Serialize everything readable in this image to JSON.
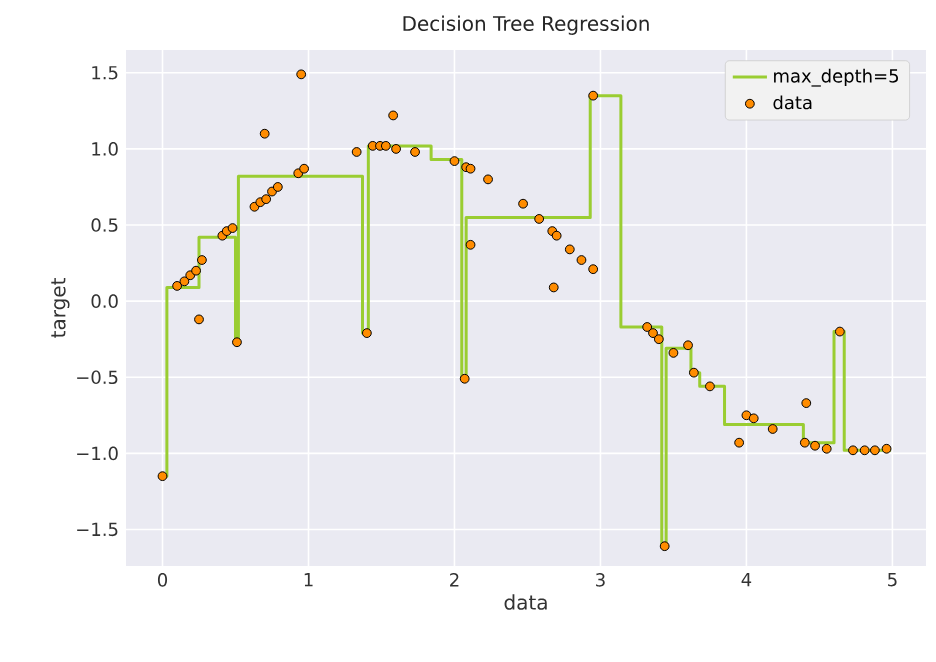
{
  "chart_data": {
    "type": "scatter",
    "title": "Decision Tree Regression",
    "xlabel": "data",
    "ylabel": "target",
    "xlim": [
      -0.25,
      5.23
    ],
    "ylim": [
      -1.74,
      1.65
    ],
    "xticks": [
      0,
      1,
      2,
      3,
      4,
      5
    ],
    "yticks": [
      {
        "value": -1.5,
        "label": "−1.5"
      },
      {
        "value": -1.0,
        "label": "−1.0"
      },
      {
        "value": -0.5,
        "label": "−0.5"
      },
      {
        "value": 0.0,
        "label": "0.0"
      },
      {
        "value": 0.5,
        "label": "0.5"
      },
      {
        "value": 1.0,
        "label": "1.0"
      },
      {
        "value": 1.5,
        "label": "1.5"
      }
    ],
    "grid": true,
    "legend": "top right",
    "series": [
      {
        "name": "max_depth=5",
        "type": "step",
        "color": "#9acd32",
        "marker": "none",
        "x": [
          0.0,
          0.03,
          0.25,
          0.5,
          0.52,
          1.37,
          1.41,
          1.84,
          2.05,
          2.08,
          2.93,
          3.14,
          3.42,
          3.45,
          3.62,
          3.68,
          3.85,
          4.39,
          4.6,
          4.67,
          4.99
        ],
        "values": [
          -1.15,
          0.09,
          0.42,
          -0.27,
          0.82,
          -0.21,
          1.02,
          0.93,
          -0.51,
          0.55,
          1.35,
          -0.17,
          -1.61,
          -0.31,
          -0.47,
          -0.56,
          -0.81,
          -0.93,
          -0.2,
          -0.98,
          -0.98
        ]
      },
      {
        "name": "data",
        "color": "#ff8c00",
        "marker": "circle",
        "x": [
          0.0,
          0.1,
          0.15,
          0.19,
          0.23,
          0.25,
          0.27,
          0.41,
          0.44,
          0.48,
          0.51,
          0.63,
          0.67,
          0.71,
          0.7,
          0.75,
          0.79,
          0.93,
          0.97,
          0.95,
          1.33,
          1.4,
          1.44,
          1.49,
          1.53,
          1.58,
          1.6,
          1.73,
          2.0,
          2.08,
          2.11,
          2.07,
          2.11,
          2.23,
          2.47,
          2.58,
          2.67,
          2.7,
          2.68,
          2.79,
          2.87,
          2.95,
          2.95,
          3.32,
          3.36,
          3.4,
          3.44,
          3.5,
          3.6,
          3.64,
          3.75,
          3.95,
          4.0,
          4.05,
          4.18,
          4.41,
          4.4,
          4.47,
          4.55,
          4.64,
          4.73,
          4.81,
          4.88,
          4.96
        ],
        "values": [
          -1.15,
          0.1,
          0.13,
          0.17,
          0.2,
          -0.12,
          0.27,
          0.43,
          0.46,
          0.48,
          -0.27,
          0.62,
          0.65,
          0.67,
          1.1,
          0.72,
          0.75,
          0.84,
          0.87,
          1.49,
          0.98,
          -0.21,
          1.02,
          1.02,
          1.02,
          1.22,
          1.0,
          0.98,
          0.92,
          0.88,
          0.87,
          -0.51,
          0.37,
          0.8,
          0.64,
          0.54,
          0.46,
          0.43,
          0.09,
          0.34,
          0.27,
          0.21,
          1.35,
          -0.17,
          -0.21,
          -0.25,
          -1.61,
          -0.34,
          -0.29,
          -0.47,
          -0.56,
          -0.93,
          -0.75,
          -0.77,
          -0.84,
          -0.67,
          -0.93,
          -0.95,
          -0.97,
          -0.2,
          -0.98,
          -0.98,
          -0.98,
          -0.97
        ]
      }
    ]
  }
}
